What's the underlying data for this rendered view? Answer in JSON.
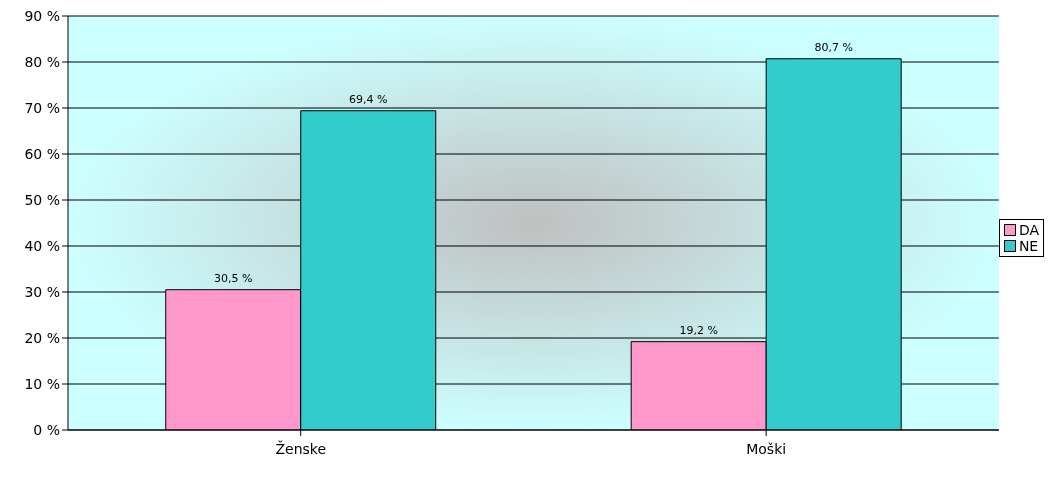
{
  "chart_data": {
    "type": "bar",
    "categories": [
      "Ženske",
      "Moški"
    ],
    "series": [
      {
        "name": "DA",
        "color": "#ff99cc",
        "values": [
          30.5,
          19.2
        ],
        "value_labels": [
          "30,5 %",
          "19,2 %"
        ]
      },
      {
        "name": "NE",
        "color": "#33cccc",
        "values": [
          69.4,
          80.7
        ],
        "value_labels": [
          "69,4 %",
          "80,7 %"
        ]
      }
    ],
    "ylim": [
      0,
      90
    ],
    "yticks": [
      {
        "value": 0,
        "label": "0 %"
      },
      {
        "value": 10,
        "label": "10 %"
      },
      {
        "value": 20,
        "label": "20 %"
      },
      {
        "value": 30,
        "label": "30 %"
      },
      {
        "value": 40,
        "label": "40 %"
      },
      {
        "value": 50,
        "label": "50 %"
      },
      {
        "value": 60,
        "label": "60 %"
      },
      {
        "value": 70,
        "label": "70 %"
      },
      {
        "value": 80,
        "label": "80 %"
      },
      {
        "value": 90,
        "label": "90 %"
      }
    ],
    "grid": "y",
    "legend": "right"
  }
}
